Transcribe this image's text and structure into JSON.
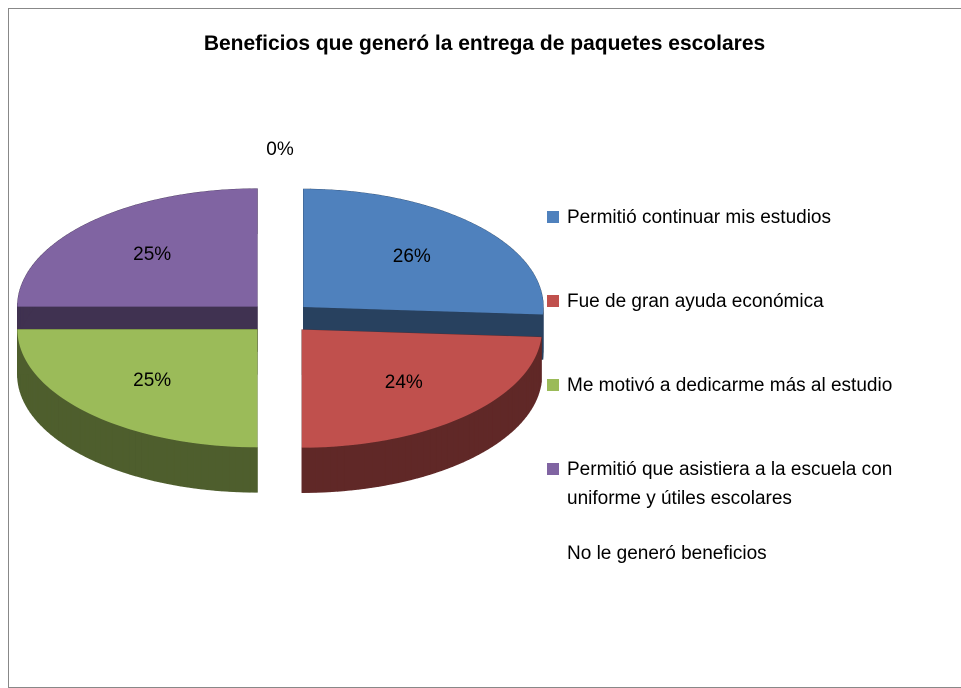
{
  "chart_data": {
    "type": "pie",
    "title": "Beneficios que generó la entrega de paquetes escolares",
    "categories": [
      "Permitió continuar mis estudios",
      "Fue de gran ayuda económica",
      "Me motivó a dedicarme más al estudio",
      "Permitió que asistiera a la escuela con uniforme y útiles escolares",
      "No le generó beneficios"
    ],
    "values": [
      26,
      24,
      25,
      25,
      0
    ],
    "value_labels": [
      "26%",
      "24%",
      "25%",
      "25%",
      "0%"
    ],
    "colors": [
      "#4f81bd",
      "#c0504d",
      "#9bbb59",
      "#8064a2",
      "#ffffff"
    ],
    "legend": "right"
  }
}
